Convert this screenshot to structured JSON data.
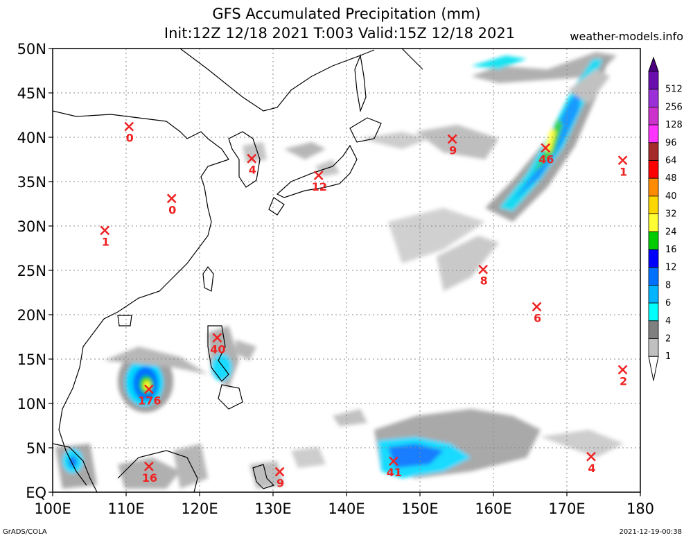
{
  "header": {
    "title_line1": "GFS Accumulated Precipitation (mm)",
    "title_line2": "Init:12Z 12/18 2021 T:003 Valid:15Z 12/18 2021",
    "site": "weather-models.info"
  },
  "footer": {
    "left": "GrADS/COLA",
    "right": "2021-12-19-00:38"
  },
  "map": {
    "lon_range": [
      100,
      180
    ],
    "lat_range": [
      0,
      50
    ],
    "lon_ticks": [
      {
        "v": 100,
        "label": "100E"
      },
      {
        "v": 110,
        "label": "110E"
      },
      {
        "v": 120,
        "label": "120E"
      },
      {
        "v": 130,
        "label": "130E"
      },
      {
        "v": 140,
        "label": "140E"
      },
      {
        "v": 150,
        "label": "150E"
      },
      {
        "v": 160,
        "label": "160E"
      },
      {
        "v": 170,
        "label": "170E"
      },
      {
        "v": 180,
        "label": "180"
      }
    ],
    "lat_ticks": [
      {
        "v": 0,
        "label": "EQ"
      },
      {
        "v": 5,
        "label": "5N"
      },
      {
        "v": 10,
        "label": "10N"
      },
      {
        "v": 15,
        "label": "15N"
      },
      {
        "v": 20,
        "label": "20N"
      },
      {
        "v": 25,
        "label": "25N"
      },
      {
        "v": 30,
        "label": "30N"
      },
      {
        "v": 35,
        "label": "35N"
      },
      {
        "v": 40,
        "label": "40N"
      },
      {
        "v": 45,
        "label": "45N"
      },
      {
        "v": 50,
        "label": "50N"
      }
    ],
    "stations": [
      {
        "lon": 110.4,
        "lat": 41.2,
        "value": "0"
      },
      {
        "lon": 116.2,
        "lat": 33.1,
        "value": "0"
      },
      {
        "lon": 107.1,
        "lat": 29.5,
        "value": "1"
      },
      {
        "lon": 127.1,
        "lat": 37.6,
        "value": "4"
      },
      {
        "lon": 136.2,
        "lat": 35.7,
        "value": "12"
      },
      {
        "lon": 154.4,
        "lat": 39.8,
        "value": "9"
      },
      {
        "lon": 167.1,
        "lat": 38.8,
        "value": "46"
      },
      {
        "lon": 177.6,
        "lat": 37.4,
        "value": "1"
      },
      {
        "lon": 158.6,
        "lat": 25.1,
        "value": "8"
      },
      {
        "lon": 165.9,
        "lat": 20.9,
        "value": "6"
      },
      {
        "lon": 122.4,
        "lat": 17.4,
        "value": "40"
      },
      {
        "lon": 113.1,
        "lat": 11.6,
        "value": "176"
      },
      {
        "lon": 177.6,
        "lat": 13.8,
        "value": "2"
      },
      {
        "lon": 113.1,
        "lat": 2.9,
        "value": "16"
      },
      {
        "lon": 130.9,
        "lat": 2.3,
        "value": "9"
      },
      {
        "lon": 146.4,
        "lat": 3.5,
        "value": "41"
      },
      {
        "lon": 173.3,
        "lat": 4.0,
        "value": "4"
      }
    ]
  },
  "colorbar": {
    "levels": [
      {
        "label": "512",
        "color": "#6a0dad"
      },
      {
        "label": "256",
        "color": "#9b30d9"
      },
      {
        "label": "128",
        "color": "#cc33cc"
      },
      {
        "label": "96",
        "color": "#ff33ff"
      },
      {
        "label": "64",
        "color": "#a52a2a"
      },
      {
        "label": "48",
        "color": "#ff0000"
      },
      {
        "label": "40",
        "color": "#ff8c00"
      },
      {
        "label": "32",
        "color": "#ffd700"
      },
      {
        "label": "24",
        "color": "#ffff33"
      },
      {
        "label": "16",
        "color": "#00cc00"
      },
      {
        "label": "12",
        "color": "#0000ff"
      },
      {
        "label": "8",
        "color": "#0070ff"
      },
      {
        "label": "6",
        "color": "#00b4ff"
      },
      {
        "label": "4",
        "color": "#00ffff"
      },
      {
        "label": "2",
        "color": "#808080"
      },
      {
        "label": "1",
        "color": "#c0c0c0"
      }
    ],
    "top_color": "#4b0082",
    "bottom_color": "#ffffff"
  }
}
